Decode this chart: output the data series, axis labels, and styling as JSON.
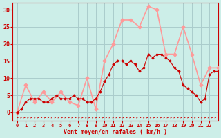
{
  "xlabel": "Vent moyen/en rafales ( km/h )",
  "bg_color": "#cceee8",
  "grid_color": "#aacccc",
  "xlim": [
    -0.5,
    23
  ],
  "ylim": [
    -2.5,
    32
  ],
  "yticks": [
    0,
    5,
    10,
    15,
    20,
    25,
    30
  ],
  "xticks": [
    0,
    1,
    2,
    3,
    4,
    5,
    6,
    7,
    8,
    9,
    10,
    11,
    12,
    13,
    14,
    15,
    16,
    17,
    18,
    19,
    20,
    21,
    22
  ],
  "rafales_x": [
    0,
    1,
    2,
    3,
    4,
    5,
    6,
    7,
    8,
    9,
    10,
    11,
    12,
    13,
    14,
    15,
    16,
    17,
    18,
    19,
    20,
    21,
    22,
    23
  ],
  "rafales_y": [
    0,
    8,
    3,
    6,
    3,
    6,
    3,
    2,
    10,
    1,
    15,
    20,
    27,
    27,
    25,
    31,
    30,
    17,
    17,
    25,
    17,
    8,
    13,
    13
  ],
  "moyen_x": [
    0,
    1,
    2,
    3,
    4,
    5,
    6,
    7,
    8,
    9,
    10,
    11,
    12,
    13,
    14,
    15,
    16,
    17,
    18,
    19,
    20,
    21,
    22,
    23
  ],
  "moyen_y": [
    0,
    3,
    4,
    3,
    4,
    4,
    4,
    4,
    3,
    3,
    9,
    14,
    15,
    15,
    12,
    17,
    17,
    16,
    13,
    8,
    6,
    3,
    11,
    12
  ],
  "moyen_dense_x": [
    0,
    0.5,
    1,
    1.5,
    2,
    2.5,
    3,
    3.5,
    4,
    4.5,
    5,
    5.5,
    6,
    6.5,
    7,
    7.5,
    8,
    8.5,
    9,
    9.5,
    10,
    10.5,
    11,
    11.5,
    12,
    12.5,
    13,
    13.5,
    14,
    14.5,
    15,
    15.5,
    16,
    16.5,
    17,
    17.5,
    18,
    18.5,
    19,
    19.5,
    20,
    20.5,
    21,
    21.5,
    22,
    22.5,
    23
  ],
  "moyen_dense_y": [
    0,
    1,
    3,
    4,
    4,
    4,
    3,
    3,
    4,
    5,
    4,
    4,
    4,
    5,
    4,
    4,
    3,
    3,
    4,
    6,
    9,
    11,
    14,
    15,
    15,
    14,
    15,
    14,
    12,
    13,
    17,
    16,
    17,
    17,
    16,
    15,
    13,
    12,
    8,
    7,
    6,
    5,
    3,
    4,
    11,
    12,
    12
  ],
  "color_rafales": "#ff9999",
  "color_moyen": "#cc0000",
  "color_dir": "#cc0000",
  "xlabel_color": "#cc0000",
  "tick_color": "#cc0000"
}
